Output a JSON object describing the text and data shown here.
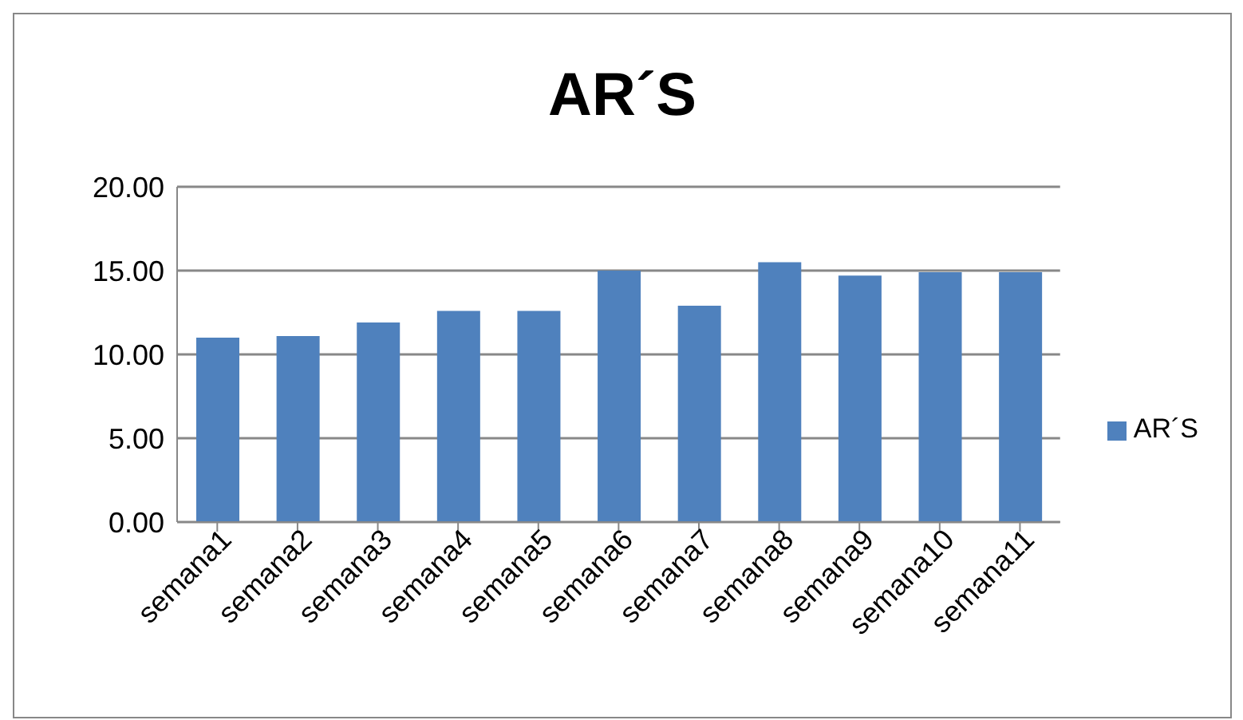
{
  "chart_data": {
    "type": "bar",
    "title": "AR´S",
    "categories": [
      "semana1",
      "semana2",
      "semana3",
      "semana4",
      "semana5",
      "semana6",
      "semana7",
      "semana8",
      "semana9",
      "semana10",
      "semana11"
    ],
    "series": [
      {
        "name": "AR´S",
        "color": "#4f81bd",
        "values": [
          11.0,
          11.1,
          11.9,
          12.6,
          12.6,
          15.0,
          12.9,
          15.5,
          14.7,
          14.9,
          14.9
        ]
      }
    ],
    "ylim": [
      0,
      20
    ],
    "yticks": [
      {
        "value": 0,
        "label": "0.00"
      },
      {
        "value": 5,
        "label": "5.00"
      },
      {
        "value": 10,
        "label": "10.00"
      },
      {
        "value": 15,
        "label": "15.00"
      },
      {
        "value": 20,
        "label": "20.00"
      }
    ],
    "grid": "y",
    "legend": "right"
  }
}
